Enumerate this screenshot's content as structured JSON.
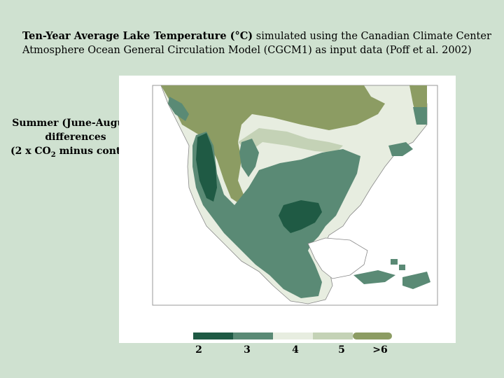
{
  "title": {
    "bold_part": "Ten-Year Average Lake Temperature (°C)",
    "rest_line1": " simulated using the Canadian Climate Center",
    "line2": "Atmosphere Ocean General Circulation Model (CGCM1) as input data (Poff et al. 2002)"
  },
  "side_label": {
    "line1": "Summer (June-August)",
    "line2": "differences",
    "line3_pre": "(2 x CO",
    "line3_sub": "2",
    "line3_post": " minus control)"
  },
  "legend": {
    "labels": [
      "2",
      "3",
      "4",
      "5",
      ">6"
    ],
    "colors": [
      "#1f5a44",
      "#5a8a75",
      "#e7ede0",
      "#c4d2b6",
      "#8c9c63"
    ]
  },
  "map_colors": {
    "land_border": "#777777",
    "ocean": "#ffffff",
    "class_2": "#1f5a44",
    "class_3": "#5a8a75",
    "class_4": "#e7ede0",
    "class_5": "#c4d2b6",
    "class_6": "#8c9c63"
  }
}
